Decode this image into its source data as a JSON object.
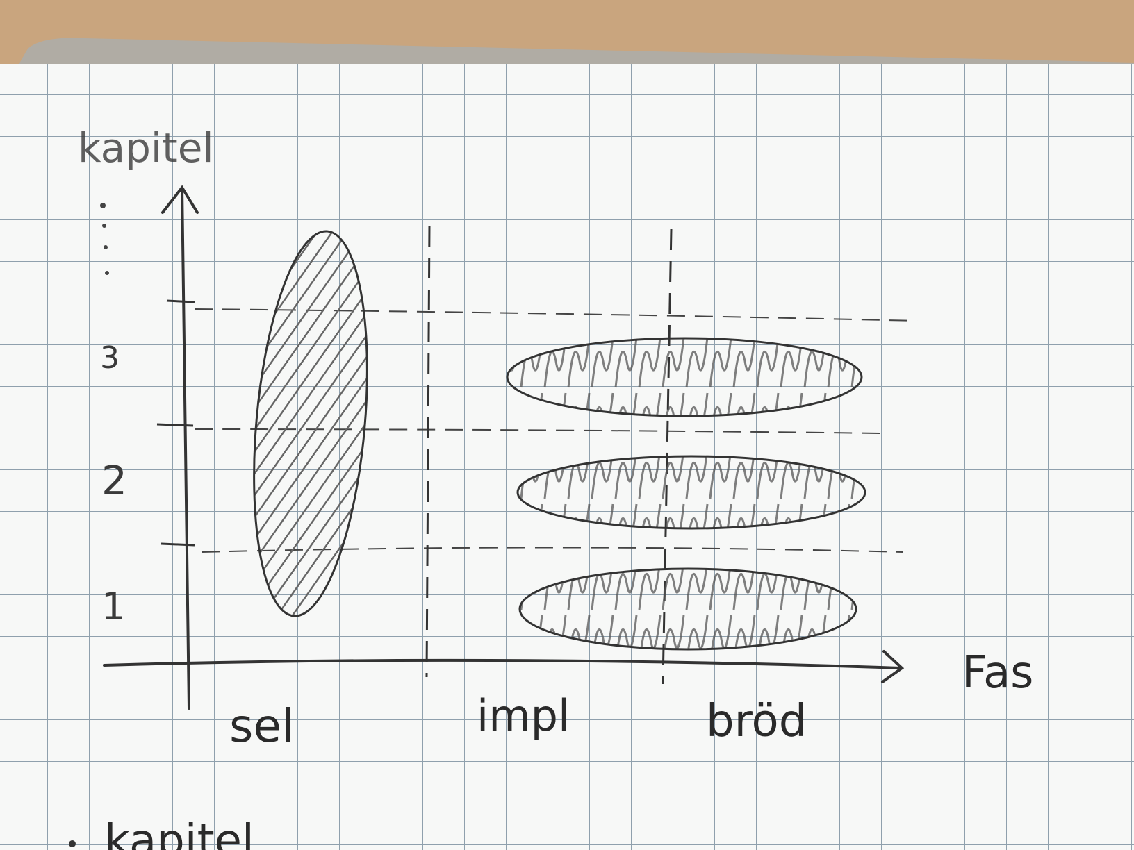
{
  "diagram": {
    "y_axis_label": "kapitel",
    "x_axis_label": "Fas",
    "y_ticks": [
      "3",
      "2",
      "1"
    ],
    "phases": [
      "sel",
      "impl",
      "bröd"
    ],
    "bottom_note": "kapitel"
  },
  "colors": {
    "table": "#c9a57e",
    "cardboard": "#b0aca4",
    "paper": "#f7f8f7",
    "grid": "#8fa0ad",
    "pencil": "#3a3a3a"
  }
}
